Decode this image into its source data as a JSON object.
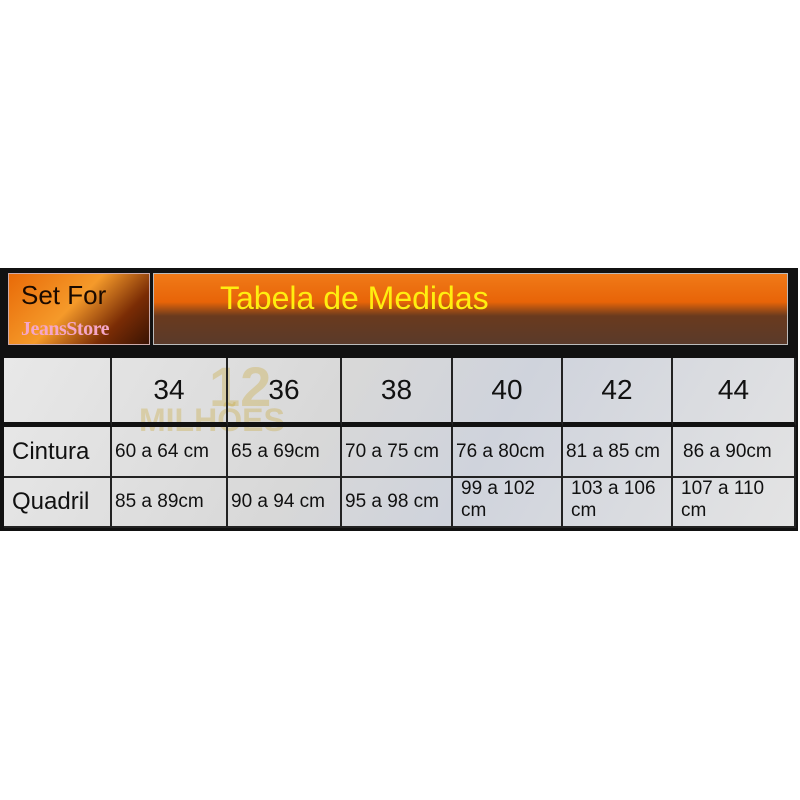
{
  "brand": {
    "line1": "Set For",
    "line2": "JeansStore"
  },
  "title": "Tabela de Medidas",
  "watermark": {
    "number": "12",
    "word": "MILHÕES"
  },
  "table": {
    "sizes": [
      "34",
      "36",
      "38",
      "40",
      "42",
      "44"
    ],
    "rows": [
      {
        "label": "Cintura",
        "values": [
          "60 a 64 cm",
          "65 a 69cm",
          "70 a 75 cm",
          "76 a 80cm",
          "81 a 85 cm",
          "86 a 90cm"
        ]
      },
      {
        "label": "Quadril",
        "values": [
          "85 a 89cm",
          "90 a 94 cm",
          "95 a 98 cm",
          "99 a 102 cm",
          "103 a 106 cm",
          "107 a 110 cm"
        ]
      }
    ]
  },
  "colors": {
    "title": "#ffee10",
    "brand_pink": "#f5a6c8",
    "banner": "#e86408"
  }
}
